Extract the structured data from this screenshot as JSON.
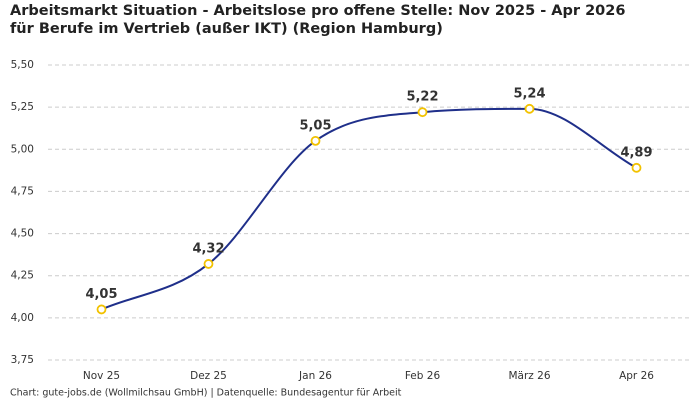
{
  "chart_data": {
    "type": "line",
    "title": "Arbeitsmarkt Situation - Arbeitslose pro offene Stelle: Nov 2025 - Apr 2026 für Berufe im Vertrieb (außer IKT) (Region Hamburg)",
    "categories": [
      "Nov 25",
      "Dez 25",
      "Jan 26",
      "Feb 26",
      "März 26",
      "Apr 26"
    ],
    "values": [
      4.05,
      4.32,
      5.05,
      5.22,
      5.24,
      4.89
    ],
    "value_labels": [
      "4,05",
      "4,32",
      "5,05",
      "5,22",
      "5,24",
      "4,89"
    ],
    "color": "#1f2f8a",
    "marker_color": "#f2c200",
    "ylim": [
      3.75,
      5.5
    ],
    "yticks": [
      {
        "value": 3.75,
        "label": "3,75"
      },
      {
        "value": 4.0,
        "label": "4,00"
      },
      {
        "value": 4.25,
        "label": "4,25"
      },
      {
        "value": 4.5,
        "label": "4,50"
      },
      {
        "value": 4.75,
        "label": "4,75"
      },
      {
        "value": 5.0,
        "label": "5,00"
      },
      {
        "value": 5.25,
        "label": "5,25"
      },
      {
        "value": 5.5,
        "label": "5,50"
      }
    ],
    "grid": true,
    "source": "Chart: gute-jobs.de (Wollmilchsau GmbH) | Datenquelle: Bundesagentur für Arbeit"
  }
}
